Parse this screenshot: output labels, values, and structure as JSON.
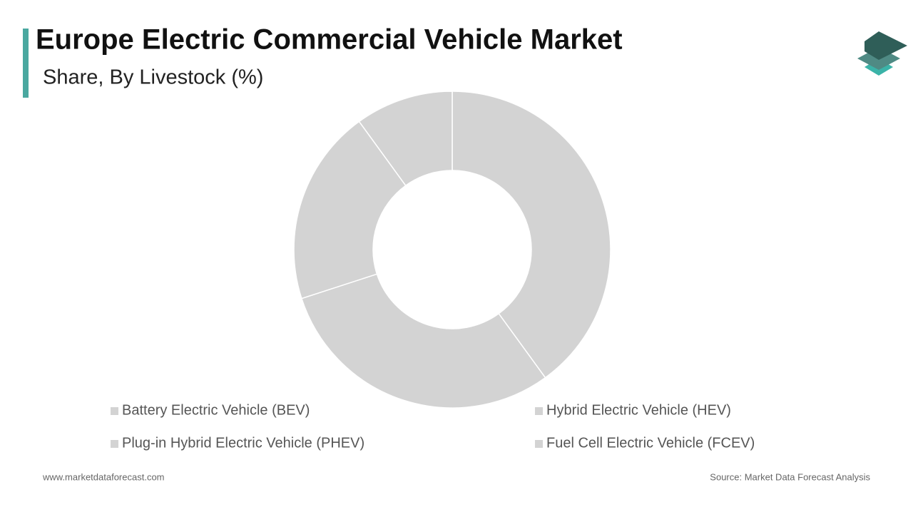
{
  "chart_data": {
    "type": "donut",
    "title": "Europe Electric Commercial Vehicle Market",
    "subtitle": "Share, By Livestock (%)",
    "categories": [
      "Battery Electric Vehicle (BEV)",
      "Hybrid Electric Vehicle (HEV)",
      "Plug-in Hybrid Electric Vehicle (PHEV)",
      "Fuel Cell Electric Vehicle (FCEV)"
    ],
    "values": [
      40,
      30,
      20,
      10
    ],
    "color": "#d3d3d3",
    "legend": "bottom"
  },
  "footer": {
    "website": "www.marketdataforecast.com",
    "source": "Source: Market Data Forecast Analysis"
  }
}
